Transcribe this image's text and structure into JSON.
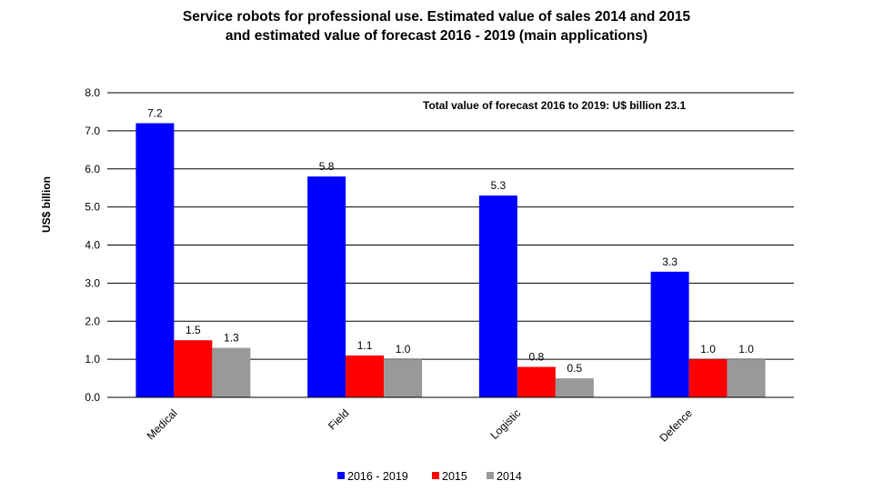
{
  "chart_data": {
    "type": "bar",
    "title_line1": "Service robots for professional use. Estimated value of sales  2014 and 2015",
    "title_line2": "and estimated value of forecast 2016 - 2019 (main applications)",
    "ylabel": "US$ billion",
    "xlabel": "",
    "ylim": [
      0,
      8
    ],
    "ytick_step": 1,
    "yticks": [
      "0.0",
      "1.0",
      "2.0",
      "3.0",
      "4.0",
      "5.0",
      "6.0",
      "7.0",
      "8.0"
    ],
    "grid": true,
    "legend_position": "bottom",
    "annotation": "Total value of forecast 2016 to 2019: U$ billion 23.1",
    "categories": [
      "Medical",
      "Field",
      "Logistic",
      "Defence"
    ],
    "series": [
      {
        "name": "2016 - 2019",
        "color": "#0000ff",
        "values": [
          7.2,
          5.8,
          5.3,
          3.3
        ],
        "labels": [
          "7.2",
          "5.8",
          "5.3",
          "3.3"
        ]
      },
      {
        "name": "2015",
        "color": "#ff0000",
        "values": [
          1.5,
          1.1,
          0.8,
          1.0
        ],
        "labels": [
          "1.5",
          "1.1",
          "0.8",
          "1.0"
        ]
      },
      {
        "name": "2014",
        "color": "#999999",
        "values": [
          1.3,
          1.0,
          0.5,
          1.0
        ],
        "labels": [
          "1.3",
          "1.0",
          "0.5",
          "1.0"
        ]
      }
    ]
  }
}
